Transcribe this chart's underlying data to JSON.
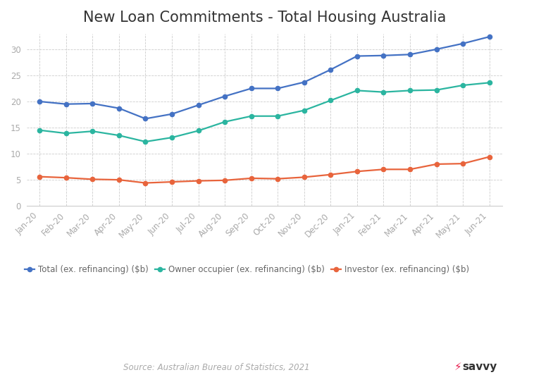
{
  "title": "New Loan Commitments - Total Housing Australia",
  "source_text": "Source: Australian Bureau of Statistics, 2021",
  "x_labels": [
    "Jan-20",
    "Feb-20",
    "Mar-20",
    "Apr-20",
    "May-20",
    "Jun-20",
    "Jul-20",
    "Aug-20",
    "Sep-20",
    "Oct-20",
    "Nov-20",
    "Dec-20",
    "Jan-21",
    "Feb-21",
    "Mar-21",
    "Apr-21",
    "May-21",
    "Jun-21"
  ],
  "total": [
    20.0,
    19.5,
    19.6,
    18.7,
    16.7,
    17.6,
    19.3,
    21.0,
    22.5,
    22.5,
    23.7,
    26.1,
    28.7,
    28.8,
    29.0,
    30.0,
    31.1,
    32.4
  ],
  "owner": [
    14.5,
    13.9,
    14.3,
    13.5,
    12.3,
    13.1,
    14.4,
    16.1,
    17.2,
    17.2,
    18.3,
    20.2,
    22.1,
    21.8,
    22.1,
    22.2,
    23.1,
    23.6
  ],
  "investor": [
    5.6,
    5.4,
    5.1,
    5.0,
    4.4,
    4.6,
    4.8,
    4.9,
    5.3,
    5.2,
    5.5,
    6.0,
    6.6,
    7.0,
    7.0,
    8.0,
    8.1,
    9.4
  ],
  "total_color": "#4472C4",
  "owner_color": "#2BB5A0",
  "investor_color": "#E8643C",
  "background_color": "#FFFFFF",
  "grid_color": "#CCCCCC",
  "title_fontsize": 15,
  "tick_fontsize": 8.5,
  "legend_fontsize": 8.5,
  "ylim": [
    0,
    33
  ],
  "yticks": [
    0,
    5,
    10,
    15,
    20,
    25,
    30
  ],
  "legend_labels": [
    "Total (ex. refinancing) ($b)",
    "Owner occupier (ex. refinancing) ($b)",
    "Investor (ex. refinancing) ($b)"
  ]
}
